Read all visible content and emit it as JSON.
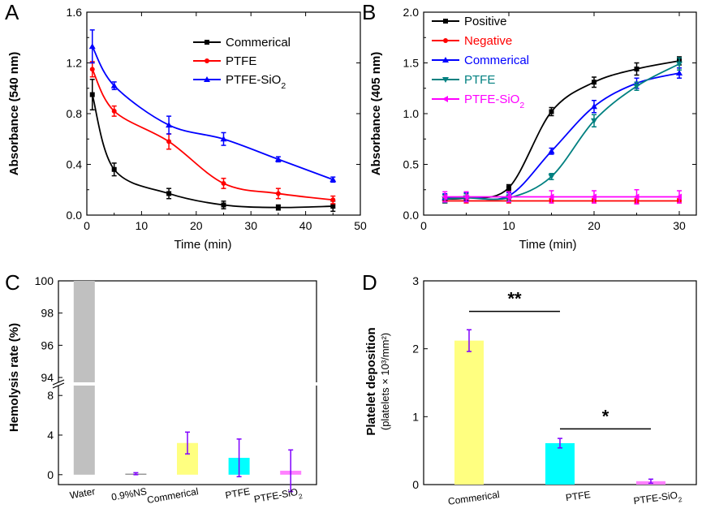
{
  "chart_data": [
    {
      "panel": "A",
      "type": "line",
      "xlabel": "Time (min)",
      "ylabel": "Absorbance (540 nm)",
      "xlim": [
        0,
        50
      ],
      "ylim": [
        0,
        1.6
      ],
      "xticks": [
        "0",
        "10",
        "20",
        "30",
        "40",
        "50"
      ],
      "yticks": [
        "0.0",
        "0.4",
        "0.8",
        "1.2",
        "1.6"
      ],
      "legend_position": "top-right",
      "series": [
        {
          "name": "Commerical",
          "color": "#000000",
          "marker": "square",
          "x": [
            1,
            5,
            15,
            25,
            35,
            45
          ],
          "y": [
            0.95,
            0.36,
            0.17,
            0.08,
            0.06,
            0.07
          ],
          "err": [
            0.12,
            0.05,
            0.04,
            0.03,
            0.02,
            0.04
          ]
        },
        {
          "name": "PTFE",
          "color": "#ff0000",
          "marker": "circle",
          "x": [
            1,
            5,
            15,
            25,
            35,
            45
          ],
          "y": [
            1.15,
            0.82,
            0.58,
            0.25,
            0.17,
            0.12
          ],
          "err": [
            0.06,
            0.04,
            0.06,
            0.04,
            0.04,
            0.03
          ]
        },
        {
          "name": "PTFE-SiO₂",
          "color": "#0000ff",
          "marker": "triangle",
          "x": [
            1,
            5,
            15,
            25,
            35,
            45
          ],
          "y": [
            1.33,
            1.02,
            0.71,
            0.6,
            0.44,
            0.28
          ],
          "err": [
            0.13,
            0.03,
            0.07,
            0.05,
            0.02,
            0.02
          ]
        }
      ]
    },
    {
      "panel": "B",
      "type": "line",
      "xlabel": "Time (min)",
      "ylabel": "Absorbance (405 nm)",
      "xlim": [
        0,
        32
      ],
      "ylim": [
        0,
        2.0
      ],
      "xticks": [
        "0",
        "10",
        "20",
        "30"
      ],
      "yticks": [
        "0.0",
        "0.5",
        "1.0",
        "1.5",
        "2.0"
      ],
      "legend_position": "top-left",
      "series": [
        {
          "name": "Positive",
          "color": "#000000",
          "marker": "square",
          "x": [
            2.5,
            5,
            10,
            15,
            20,
            25,
            30
          ],
          "y": [
            0.16,
            0.17,
            0.27,
            1.02,
            1.31,
            1.44,
            1.52
          ],
          "err": [
            0.04,
            0.04,
            0.03,
            0.04,
            0.05,
            0.06,
            0.04
          ]
        },
        {
          "name": "Negative",
          "color": "#ff0000",
          "marker": "circle",
          "x": [
            2.5,
            5,
            10,
            15,
            20,
            25,
            30
          ],
          "y": [
            0.14,
            0.14,
            0.14,
            0.14,
            0.14,
            0.14,
            0.14
          ],
          "err": [
            0.02,
            0.02,
            0.02,
            0.02,
            0.02,
            0.02,
            0.02
          ]
        },
        {
          "name": "Commerical",
          "color": "#0000ff",
          "marker": "triangle",
          "x": [
            2.5,
            5,
            10,
            15,
            20,
            25,
            30
          ],
          "y": [
            0.17,
            0.18,
            0.19,
            0.63,
            1.07,
            1.3,
            1.4
          ],
          "err": [
            0.04,
            0.04,
            0.03,
            0.03,
            0.06,
            0.05,
            0.05
          ]
        },
        {
          "name": "PTFE",
          "color": "#008080",
          "marker": "triangle-down",
          "x": [
            2.5,
            5,
            10,
            15,
            20,
            25,
            30
          ],
          "y": [
            0.16,
            0.17,
            0.17,
            0.38,
            0.93,
            1.27,
            1.49
          ],
          "err": [
            0.04,
            0.04,
            0.03,
            0.03,
            0.06,
            0.04,
            0.06
          ]
        },
        {
          "name": "PTFE-SiO₂",
          "color": "#ff00ff",
          "marker": "triangle-left",
          "x": [
            2.5,
            5,
            10,
            15,
            20,
            25,
            30
          ],
          "y": [
            0.18,
            0.18,
            0.18,
            0.18,
            0.18,
            0.18,
            0.18
          ],
          "err": [
            0.05,
            0.05,
            0.05,
            0.06,
            0.06,
            0.07,
            0.06
          ]
        }
      ]
    },
    {
      "panel": "C",
      "type": "bar",
      "ylabel": "Hemolysis rate (%)",
      "axis_break": {
        "lower_range": [
          -1,
          9
        ],
        "upper_range": [
          93.7,
          100
        ]
      },
      "yticks_lower": [
        "0",
        "4",
        "8"
      ],
      "yticks_upper": [
        "94",
        "96",
        "98",
        "100"
      ],
      "categories": [
        "Water",
        "0.9%NS",
        "Commerical",
        "PTFE",
        "PTFE-SiO₂"
      ],
      "values": [
        100,
        0.1,
        3.2,
        1.7,
        0.4
      ],
      "errors": [
        0,
        0.1,
        1.1,
        1.9,
        2.1
      ],
      "colors": [
        "#c0c0c0",
        "#808080",
        "#ffff80",
        "#00ffff",
        "#ff80ff"
      ]
    },
    {
      "panel": "D",
      "type": "bar",
      "ylabel": "Platelet deposition",
      "ylabel_sub": "(platelets × 10³/mm²)",
      "ylim": [
        0,
        3
      ],
      "yticks": [
        "0",
        "1",
        "2",
        "3"
      ],
      "categories": [
        "Commerical",
        "PTFE",
        "PTFE-SiO₂"
      ],
      "values": [
        2.12,
        0.61,
        0.05
      ],
      "errors": [
        0.16,
        0.07,
        0.03
      ],
      "colors": [
        "#ffff80",
        "#00ffff",
        "#ff80ff"
      ],
      "annotations": [
        {
          "text": "**",
          "from": "Commerical",
          "to": "PTFE",
          "level": 2.55
        },
        {
          "text": "*",
          "from": "PTFE",
          "to": "PTFE-SiO₂",
          "level": 0.82
        }
      ]
    }
  ],
  "panel_labels": {
    "a": "A",
    "b": "B",
    "c": "C",
    "d": "D"
  }
}
